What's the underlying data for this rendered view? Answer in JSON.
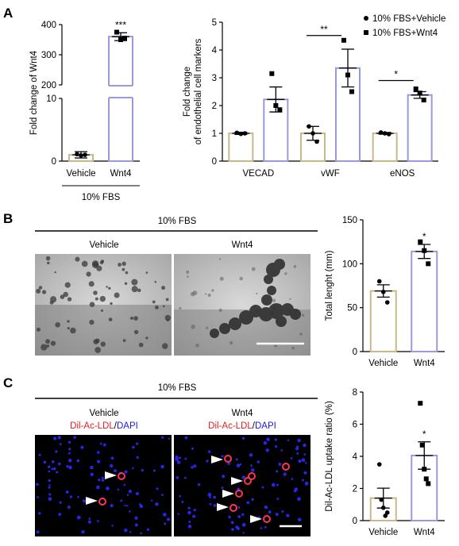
{
  "panels": {
    "a": "A",
    "b": "B",
    "c": "C"
  },
  "colors": {
    "vehicle": "#C8B88A",
    "wnt4": "#9999DD"
  },
  "legend": {
    "vehicle_label": "10% FBS+Vehicle",
    "wnt4_label": "10% FBS+Wnt4"
  },
  "condition_label": "10% FBS",
  "micrographs": {
    "b_left_title": "Vehicle",
    "b_right_title": "Wnt4",
    "c_left_title": "Vehicle",
    "c_right_title": "Wnt4",
    "stain_red": "Dil-Ac-LDL",
    "stain_sep": "/",
    "stain_blue": "DAPI"
  },
  "chart_data": [
    {
      "id": "a1",
      "type": "bar",
      "categories": [
        "Vehicle",
        "Wnt4"
      ],
      "values": [
        1,
        360
      ],
      "errors": [
        0.5,
        13
      ],
      "points": [
        [
          1.1,
          0.9,
          1.0
        ],
        [
          375,
          350,
          355
        ]
      ],
      "ylabel": "Fold change of Wnt4",
      "yaxis_break": [
        10,
        200
      ],
      "ticks": [
        0,
        10,
        200,
        300,
        400
      ],
      "significance": [
        "",
        "***"
      ]
    },
    {
      "id": "a2",
      "type": "bar",
      "categories": [
        "VECAD",
        "vWF",
        "eNOS"
      ],
      "series": [
        {
          "name": "10% FBS+Vehicle",
          "values": [
            1.0,
            1.0,
            1.0
          ],
          "errors": [
            0.04,
            0.25,
            0.03
          ],
          "points": [
            [
              1.02,
              0.98,
              1.0
            ],
            [
              1.25,
              1.0,
              0.7
            ],
            [
              1.03,
              1.0,
              0.97
            ]
          ]
        },
        {
          "name": "10% FBS+Wnt4",
          "values": [
            2.22,
            3.35,
            2.38
          ],
          "errors": [
            0.45,
            0.68,
            0.12
          ],
          "points": [
            [
              3.15,
              2.0,
              1.85
            ],
            [
              4.35,
              3.1,
              2.5
            ],
            [
              2.6,
              2.45,
              2.2
            ]
          ]
        }
      ],
      "ylabel": "Fold change of endothelial cell markers",
      "ylim": [
        0,
        5
      ],
      "ticks": [
        0,
        1,
        2,
        3,
        4,
        5
      ],
      "significance": [
        "",
        "**",
        "*"
      ]
    },
    {
      "id": "b",
      "type": "bar",
      "categories": [
        "Vehicle",
        "Wnt4"
      ],
      "values": [
        69,
        114
      ],
      "errors": [
        7,
        8
      ],
      "points": [
        [
          80,
          68,
          56
        ],
        [
          125,
          115,
          100
        ]
      ],
      "ylabel": "Total lenght (mm)",
      "ylim": [
        0,
        150
      ],
      "ticks": [
        0,
        50,
        100,
        150
      ],
      "significance": [
        "",
        "*"
      ]
    },
    {
      "id": "c",
      "type": "bar",
      "categories": [
        "Vehicle",
        "Wnt4"
      ],
      "values": [
        1.4,
        4.05
      ],
      "errors": [
        0.62,
        0.85
      ],
      "points": [
        [
          3.5,
          1.3,
          0.8,
          0.3,
          0.5
        ],
        [
          7.3,
          4.7,
          3.2,
          2.6,
          2.3
        ]
      ],
      "ylabel": "Dil-Ac-LDL uptake ratio (%)",
      "ylim": [
        0,
        8
      ],
      "ticks": [
        0,
        2,
        4,
        6,
        8
      ],
      "significance": [
        "",
        "*"
      ]
    }
  ]
}
